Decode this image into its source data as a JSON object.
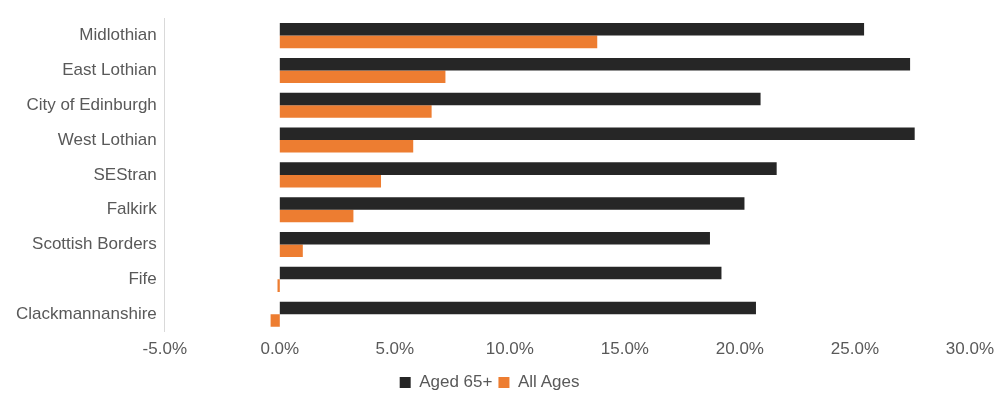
{
  "chart_data": {
    "type": "bar",
    "orientation": "horizontal",
    "categories": [
      "Midlothian",
      "East Lothian",
      "City of Edinburgh",
      "West Lothian",
      "SEStran",
      "Falkirk",
      "Scottish Borders",
      "Fife",
      "Clackmannanshire"
    ],
    "series": [
      {
        "name": "Aged 65+",
        "color": "#262626",
        "values": [
          25.4,
          27.4,
          20.9,
          27.6,
          21.6,
          20.2,
          18.7,
          19.2,
          20.7
        ]
      },
      {
        "name": "All Ages",
        "color": "#ed7d31",
        "values": [
          13.8,
          7.2,
          6.6,
          5.8,
          4.4,
          3.2,
          1.0,
          -0.1,
          -0.4
        ]
      }
    ],
    "xlim": [
      -5,
      30
    ],
    "xticks": [
      {
        "value": -5,
        "label": "-5.0%"
      },
      {
        "value": 0,
        "label": "0.0%"
      },
      {
        "value": 5,
        "label": "5.0%"
      },
      {
        "value": 10,
        "label": "10.0%"
      },
      {
        "value": 15,
        "label": "15.0%"
      },
      {
        "value": 20,
        "label": "20.0%"
      },
      {
        "value": 25,
        "label": "25.0%"
      },
      {
        "value": 30,
        "label": "30.0%"
      }
    ],
    "grid": false,
    "legend": "bottom"
  }
}
